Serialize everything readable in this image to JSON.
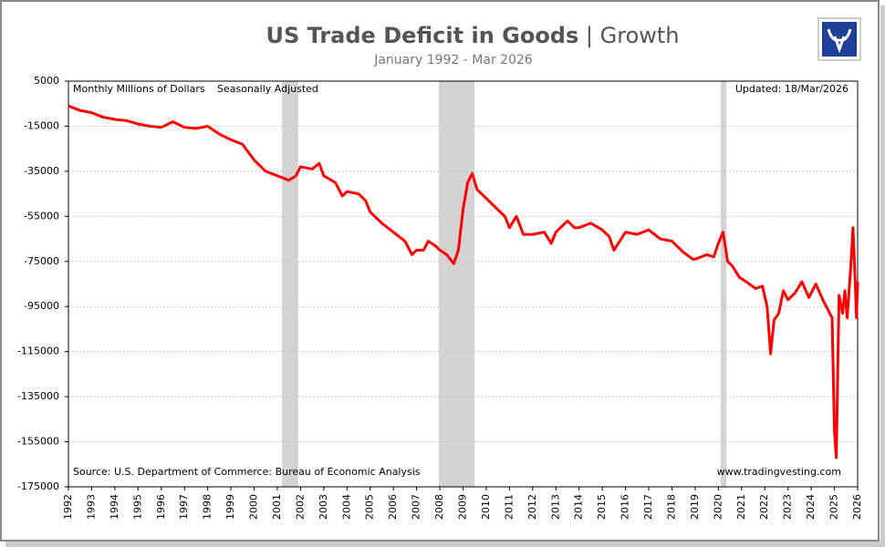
{
  "chart_data": {
    "type": "line",
    "title_parts": [
      "US Trade Deficit in Goods",
      "| Growth"
    ],
    "subtitle": "January 1992 - Mar 2026",
    "annotations": [
      "Monthly Millions of Dollars",
      "Seasonally Adjusted",
      "Updated: 18/Mar/2026",
      "Source: U.S. Department of Commerce: Bureau of Economic Analysis",
      "www.tradingvesting.com"
    ],
    "shaded_ranges": [
      [
        2001.2,
        2001.9
      ],
      [
        2007.95,
        2009.5
      ],
      [
        2020.1,
        2020.35
      ]
    ],
    "xlim": [
      1992,
      2026
    ],
    "xticks": [
      1992,
      1993,
      1994,
      1995,
      1996,
      1997,
      1998,
      1999,
      2000,
      2001,
      2002,
      2003,
      2004,
      2005,
      2006,
      2007,
      2008,
      2009,
      2010,
      2011,
      2012,
      2013,
      2014,
      2015,
      2016,
      2017,
      2018,
      2019,
      2020,
      2021,
      2022,
      2023,
      2024,
      2025,
      2026
    ],
    "ylim": [
      -175000,
      5000
    ],
    "yticks": [
      5000,
      -15000,
      -35000,
      -55000,
      -75000,
      -95000,
      -115000,
      -135000,
      -155000,
      -175000
    ],
    "grid": true,
    "series": [
      {
        "name": "Trade Deficit in Goods",
        "color": "#ff0000",
        "x": [
          1992.0,
          1992.5,
          1993.0,
          1993.5,
          1994.0,
          1994.5,
          1995.0,
          1995.5,
          1996.0,
          1996.5,
          1997.0,
          1997.5,
          1998.0,
          1998.5,
          1999.0,
          1999.5,
          2000.0,
          2000.5,
          2001.0,
          2001.5,
          2001.8,
          2002.0,
          2002.5,
          2002.8,
          2003.0,
          2003.5,
          2003.8,
          2004.0,
          2004.5,
          2004.8,
          2005.0,
          2005.5,
          2006.0,
          2006.5,
          2006.8,
          2007.0,
          2007.3,
          2007.5,
          2007.8,
          2008.0,
          2008.3,
          2008.6,
          2008.8,
          2009.0,
          2009.2,
          2009.4,
          2009.6,
          2010.0,
          2010.5,
          2010.8,
          2011.0,
          2011.3,
          2011.6,
          2012.0,
          2012.5,
          2012.8,
          2013.0,
          2013.5,
          2013.8,
          2014.0,
          2014.5,
          2015.0,
          2015.3,
          2015.5,
          2016.0,
          2016.5,
          2017.0,
          2017.5,
          2018.0,
          2018.5,
          2018.9,
          2019.0,
          2019.5,
          2019.8,
          2020.0,
          2020.2,
          2020.4,
          2020.6,
          2020.9,
          2021.2,
          2021.6,
          2021.9,
          2022.1,
          2022.25,
          2022.4,
          2022.6,
          2022.8,
          2023.0,
          2023.3,
          2023.6,
          2023.9,
          2024.2,
          2024.5,
          2024.8,
          2024.9,
          2025.0,
          2025.08,
          2025.2,
          2025.35,
          2025.45,
          2025.55,
          2025.7,
          2025.8,
          2025.9,
          2025.95,
          2026.0
        ],
        "values": [
          -6000,
          -8000,
          -9000,
          -11000,
          -12000,
          -12500,
          -14000,
          -15000,
          -15500,
          -13000,
          -15500,
          -16000,
          -15000,
          -18500,
          -21000,
          -23000,
          -30000,
          -35000,
          -37000,
          -39000,
          -37000,
          -33000,
          -34000,
          -31500,
          -37000,
          -40000,
          -46000,
          -44000,
          -45000,
          -48000,
          -53000,
          -58000,
          -62000,
          -66000,
          -72000,
          -70000,
          -70000,
          -66000,
          -68000,
          -70000,
          -72000,
          -76000,
          -70000,
          -52000,
          -40000,
          -36000,
          -43000,
          -47000,
          -52000,
          -55000,
          -60000,
          -55000,
          -63000,
          -63000,
          -62000,
          -67000,
          -62000,
          -57000,
          -60000,
          -60000,
          -58000,
          -61000,
          -64000,
          -70000,
          -62000,
          -63000,
          -61000,
          -65000,
          -66000,
          -71000,
          -74000,
          -74000,
          -72000,
          -73000,
          -67000,
          -62000,
          -75000,
          -77000,
          -82000,
          -84000,
          -87000,
          -86000,
          -95000,
          -116000,
          -101000,
          -98000,
          -88000,
          -92000,
          -89000,
          -84000,
          -91000,
          -85000,
          -92000,
          -98000,
          -100000,
          -150000,
          -162000,
          -90000,
          -98000,
          -88000,
          -100000,
          -78000,
          -60000,
          -85000,
          -100000,
          -84000
        ]
      }
    ]
  }
}
